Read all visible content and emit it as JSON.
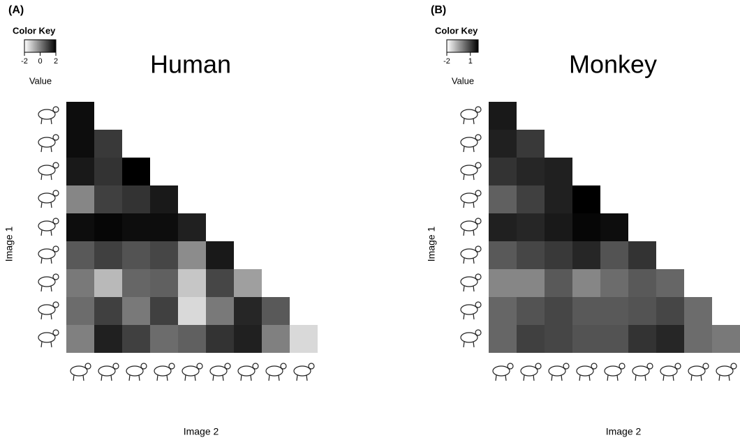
{
  "chart_data": [
    {
      "type": "heatmap",
      "panel": "(A)",
      "title": "Human",
      "key_title": "Color Key",
      "key_label": "Value",
      "key_ticks": [
        -2,
        0,
        2
      ],
      "zlim": [
        -2,
        2
      ],
      "xlabel": "Image 2",
      "ylabel": "Image 1",
      "values": [
        [
          1.8
        ],
        [
          1.8,
          1.1
        ],
        [
          1.6,
          1.2,
          2.0
        ],
        [
          -0.1,
          1.0,
          1.2,
          1.6
        ],
        [
          1.8,
          1.9,
          1.8,
          1.8,
          1.5
        ],
        [
          0.6,
          1.0,
          0.7,
          0.9,
          -0.2,
          1.6
        ],
        [
          0.1,
          -0.9,
          0.4,
          0.5,
          -1.1,
          0.9,
          -0.5
        ],
        [
          0.3,
          1.0,
          0.1,
          1.0,
          -1.4,
          0.1,
          1.4,
          0.6
        ],
        [
          0.0,
          1.5,
          1.0,
          0.3,
          0.5,
          1.2,
          1.5,
          0.0,
          -1.4
        ]
      ]
    },
    {
      "type": "heatmap",
      "panel": "(B)",
      "title": "Monkey",
      "key_title": "Color Key",
      "key_label": "Value",
      "key_ticks": [
        -2,
        1
      ],
      "zlim": [
        -2,
        2
      ],
      "xlabel": "Image 2",
      "ylabel": "Image 1",
      "values": [
        [
          1.6
        ],
        [
          1.5,
          1.1
        ],
        [
          1.2,
          1.4,
          1.5
        ],
        [
          0.5,
          1.0,
          1.5,
          2.0
        ],
        [
          1.5,
          1.4,
          1.6,
          1.9,
          1.8
        ],
        [
          0.6,
          0.9,
          1.1,
          1.4,
          0.7,
          1.2
        ],
        [
          -0.1,
          -0.1,
          0.6,
          -0.1,
          0.3,
          0.6,
          0.4
        ],
        [
          0.4,
          0.7,
          0.9,
          0.6,
          0.6,
          0.7,
          0.9,
          0.3
        ],
        [
          0.4,
          1.0,
          0.9,
          0.7,
          0.7,
          1.2,
          1.4,
          0.3,
          0.1
        ]
      ]
    }
  ]
}
